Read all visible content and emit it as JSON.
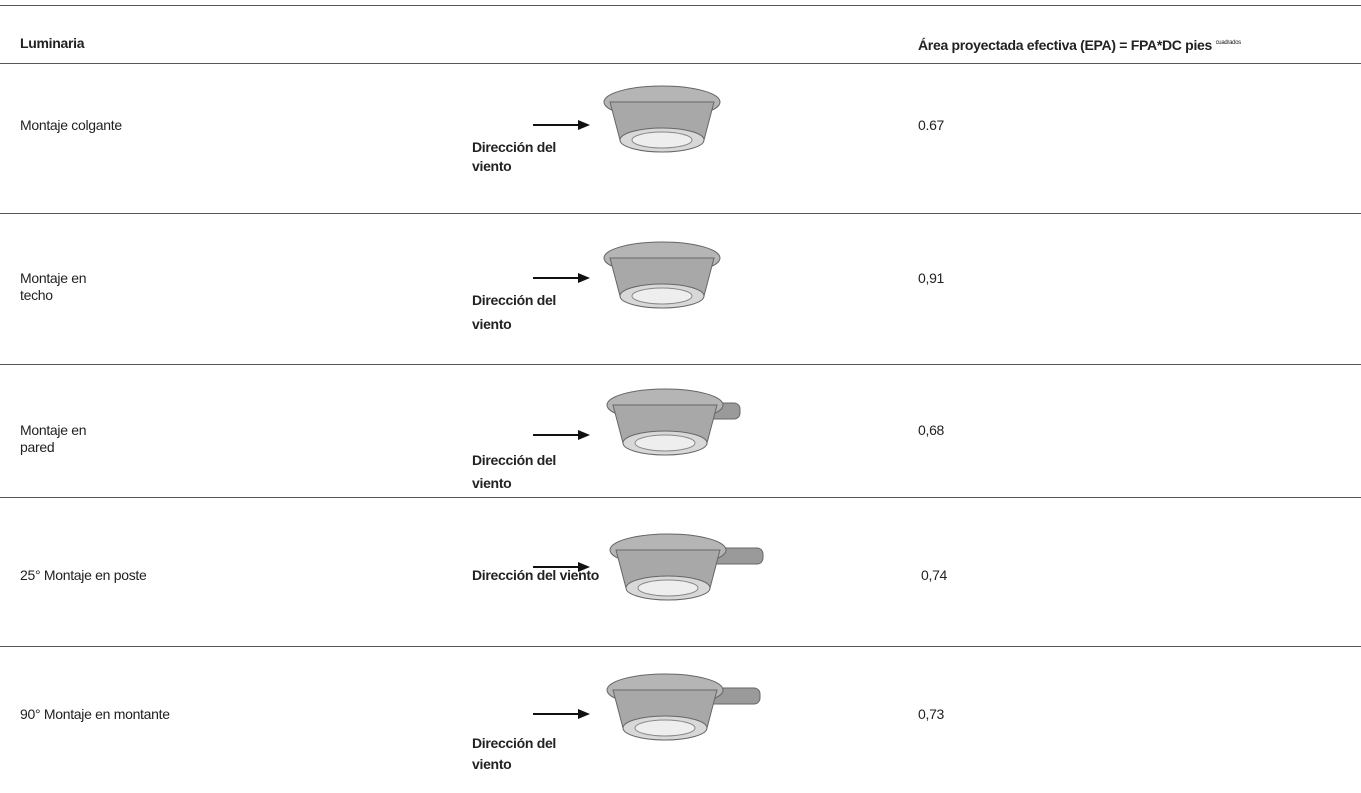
{
  "header": {
    "luminaire": "Luminaria",
    "epa": "Área proyectada efectiva (EPA) = FPA*DC pies",
    "epa_superscript": "cuadrados"
  },
  "rows": [
    {
      "label": [
        "Montaje colgante"
      ],
      "wind": [
        "Dirección del",
        "viento"
      ],
      "epa": "0.67"
    },
    {
      "label": [
        "Montaje en",
        "techo"
      ],
      "wind": [
        "Dirección del",
        "viento"
      ],
      "epa": "0,91"
    },
    {
      "label": [
        "Montaje en",
        "pared"
      ],
      "wind": [
        "Dirección del",
        "viento"
      ],
      "epa": "0,68"
    },
    {
      "label": [
        "25° Montaje en poste"
      ],
      "wind": [
        "Dirección del viento"
      ],
      "epa": "0,74"
    },
    {
      "label": [
        "90° Montaje en montante"
      ],
      "wind": [
        "Dirección del",
        "viento"
      ],
      "epa": "0,73"
    }
  ]
}
